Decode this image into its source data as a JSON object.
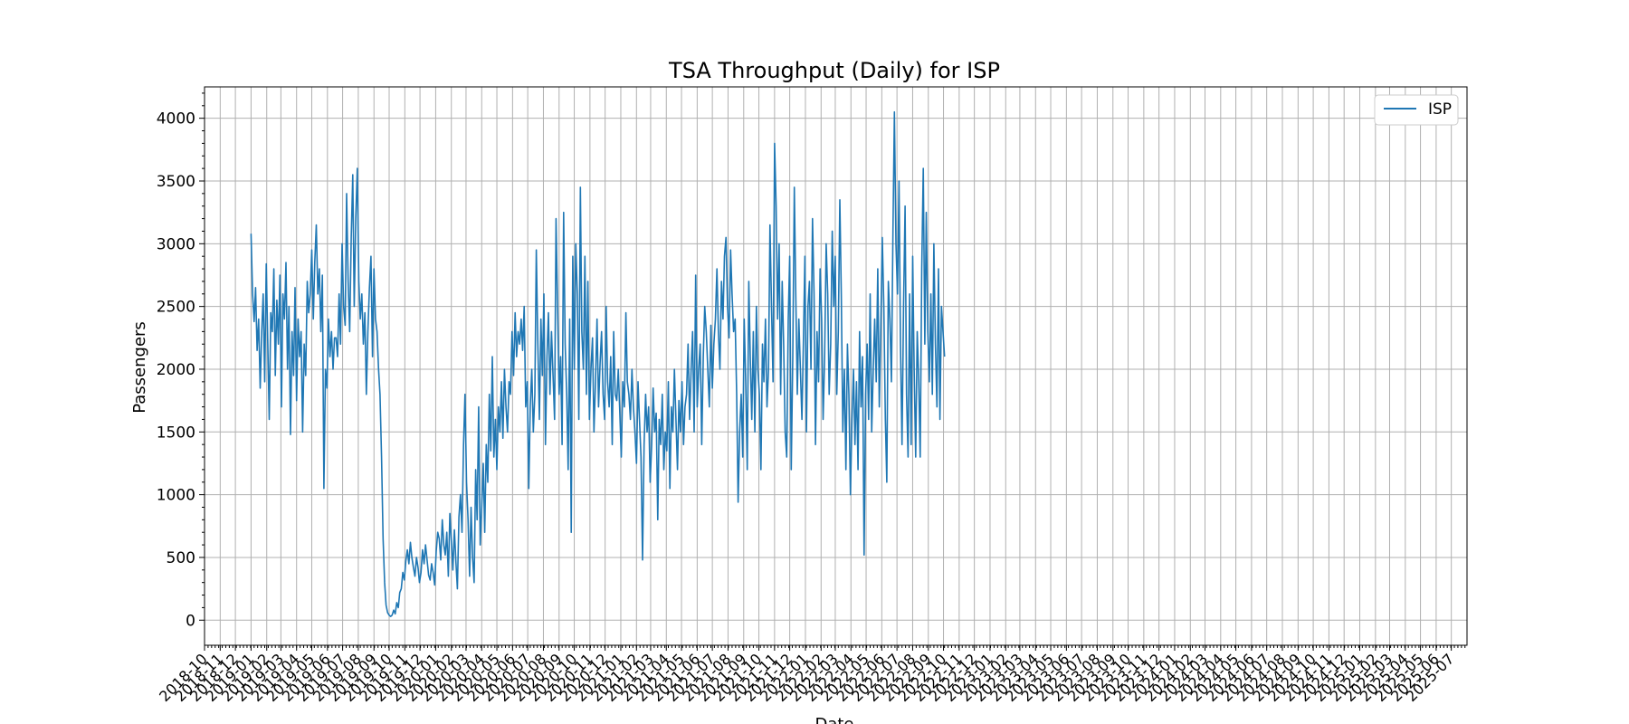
{
  "chart_data": {
    "type": "line",
    "title": "TSA Throughput (Daily) for ISP",
    "xlabel": "Date",
    "ylabel": "Passengers",
    "ylim": [
      -200,
      4250
    ],
    "yticks": [
      0,
      500,
      1000,
      1500,
      2000,
      2500,
      3000,
      3500,
      4000
    ],
    "grid": true,
    "legend": {
      "position": "top-right",
      "entries": [
        "ISP"
      ]
    },
    "x_range_months": [
      "2018-10",
      "2025-08"
    ],
    "xtick_labels": [
      "2018-10",
      "2018-11",
      "2018-12",
      "2019-01",
      "2019-02",
      "2019-03",
      "2019-04",
      "2019-05",
      "2019-06",
      "2019-07",
      "2019-08",
      "2019-09",
      "2019-10",
      "2019-11",
      "2019-12",
      "2020-01",
      "2020-02",
      "2020-03",
      "2020-04",
      "2020-05",
      "2020-06",
      "2020-07",
      "2020-08",
      "2020-09",
      "2020-10",
      "2020-11",
      "2020-12",
      "2021-01",
      "2021-02",
      "2021-03",
      "2021-04",
      "2021-05",
      "2021-06",
      "2021-07",
      "2021-08",
      "2021-09",
      "2021-10",
      "2021-11",
      "2021-12",
      "2022-01",
      "2022-02",
      "2022-03",
      "2022-04",
      "2022-05",
      "2022-06",
      "2022-07",
      "2022-08",
      "2022-09",
      "2022-10",
      "2022-11",
      "2022-12",
      "2023-01",
      "2023-02",
      "2023-03",
      "2023-04",
      "2023-05",
      "2023-06",
      "2023-07",
      "2023-08",
      "2023-09",
      "2023-10",
      "2023-11",
      "2023-12",
      "2024-01",
      "2024-02",
      "2024-03",
      "2024-04",
      "2024-05",
      "2024-06",
      "2024-07",
      "2024-08",
      "2024-09",
      "2024-10",
      "2024-11",
      "2024-12",
      "2025-01",
      "2025-02",
      "2025-03",
      "2025-04",
      "2025-05",
      "2025-06",
      "2025-07"
    ],
    "series": [
      {
        "name": "ISP",
        "color": "#1f77b4",
        "start": "2019-01-01",
        "step": "3 days",
        "values": [
          3080,
          2600,
          2380,
          2650,
          2150,
          2400,
          1850,
          2300,
          2600,
          1900,
          2840,
          2200,
          1600,
          2450,
          2300,
          2800,
          1950,
          2550,
          2200,
          2750,
          1700,
          2600,
          2400,
          2850,
          2000,
          2500,
          1480,
          2300,
          1950,
          2650,
          1750,
          2400,
          2100,
          2300,
          1500,
          2200,
          1950,
          2700,
          2450,
          2600,
          2950,
          2400,
          2850,
          3150,
          2600,
          2800,
          2300,
          2750,
          1050,
          2000,
          1850,
          2400,
          2100,
          2300,
          2000,
          2250,
          2250,
          2100,
          2600,
          2200,
          3000,
          2500,
          2350,
          3400,
          2700,
          2300,
          3050,
          3550,
          2500,
          3200,
          3600,
          2700,
          2400,
          2600,
          2200,
          2450,
          1800,
          2300,
          2650,
          2900,
          2100,
          2800,
          2400,
          2300,
          2000,
          1800,
          1300,
          650,
          300,
          120,
          60,
          40,
          30,
          40,
          80,
          50,
          140,
          100,
          220,
          250,
          380,
          320,
          470,
          560,
          450,
          620,
          500,
          420,
          350,
          500,
          420,
          300,
          380,
          560,
          450,
          600,
          480,
          360,
          320,
          450,
          380,
          280,
          550,
          700,
          650,
          480,
          800,
          600,
          520,
          700,
          350,
          850,
          640,
          400,
          720,
          460,
          250,
          820,
          1000,
          700,
          1400,
          1800,
          1100,
          800,
          350,
          900,
          500,
          300,
          1200,
          800,
          1700,
          600,
          900,
          1250,
          700,
          1400,
          1100,
          1800,
          1350,
          2100,
          1300,
          1600,
          1200,
          1700,
          1500,
          1900,
          1450,
          2000,
          1700,
          1500,
          1900,
          1800,
          2300,
          1950,
          2450,
          2100,
          2300,
          2200,
          2400,
          2150,
          2500,
          1700,
          1900,
          1050,
          1700,
          2000,
          1500,
          1800,
          2950,
          2200,
          1600,
          2400,
          1950,
          2600,
          1400,
          2100,
          2450,
          1800,
          2300,
          1950,
          1600,
          3200,
          2500,
          1800,
          2100,
          1400,
          3250,
          2200,
          1800,
          1200,
          2400,
          700,
          2900,
          2000,
          3000,
          2600,
          1600,
          3450,
          2300,
          2000,
          2900,
          1800,
          2700,
          1600,
          2000,
          2250,
          1500,
          1900,
          2400,
          1700,
          2050,
          2300,
          1800,
          1600,
          2500,
          1900,
          1700,
          2100,
          1400,
          2300,
          1800,
          1750,
          2000,
          1650,
          1300,
          1900,
          1700,
          2450,
          1900,
          1800,
          1600,
          2000,
          1700,
          1500,
          1250,
          1900,
          1600,
          1300,
          480,
          1400,
          1800,
          1500,
          1700,
          1100,
          1400,
          1850,
          1500,
          1650,
          800,
          1600,
          1400,
          1800,
          1200,
          1500,
          1350,
          1900,
          1050,
          1700,
          1500,
          2000,
          1600,
          1200,
          1750,
          1500,
          1900,
          1400,
          1700,
          1800,
          2200,
          1600,
          2000,
          2300,
          1500,
          2750,
          1700,
          2000,
          2200,
          1400,
          2100,
          2500,
          2300,
          2000,
          1700,
          2350,
          1850,
          2200,
          2400,
          2800,
          2300,
          2000,
          2700,
          2400,
          2900,
          3050,
          2500,
          2250,
          2950,
          2600,
          2300,
          2400,
          1800,
          940,
          1500,
          1800,
          1300,
          2400,
          1900,
          1200,
          2700,
          2100,
          1600,
          2300,
          1500,
          2500,
          2000,
          1800,
          1200,
          2200,
          1900,
          2400,
          1700,
          2000,
          3150,
          2500,
          1900,
          3800,
          3300,
          2400,
          3000,
          1800,
          2700,
          2200,
          1500,
          1300,
          2400,
          2900,
          1200,
          2100,
          3450,
          2600,
          1800,
          2400,
          2000,
          1600,
          2200,
          2900,
          1500,
          2500,
          2700,
          2000,
          3200,
          2600,
          1400,
          2300,
          1900,
          2800,
          2400,
          1600,
          2100,
          3000,
          2600,
          1800,
          2200,
          3100,
          2500,
          2900,
          1800,
          2300,
          3350,
          2600,
          1500,
          2000,
          1200,
          2200,
          1800,
          1000,
          1600,
          2000,
          1400,
          1900,
          1200,
          2300,
          1700,
          2100,
          520,
          1800,
          2200,
          1600,
          2600,
          1500,
          2000,
          2400,
          1900,
          2800,
          1700,
          2300,
          3050,
          2500,
          1600,
          1100,
          2700,
          2400,
          1900,
          3100,
          4050,
          3000,
          2600,
          3500,
          2200,
          1400,
          2500,
          3300,
          1800,
          1300,
          2600,
          1400,
          2900,
          2000,
          1300,
          2300,
          1900,
          1300,
          2800,
          3600,
          2200,
          3250,
          2300,
          1900,
          2600,
          1800,
          3000,
          2200,
          1700,
          2800,
          1600,
          2500,
          2300,
          2100
        ]
      }
    ]
  }
}
